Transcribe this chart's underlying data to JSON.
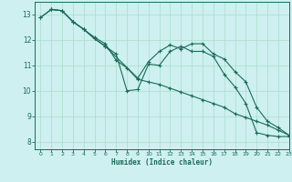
{
  "xlabel": "Humidex (Indice chaleur)",
  "bg_color": "#cef0f0",
  "line_color": "#1a6b5a",
  "grid_color": "#aaddcc",
  "xlim": [
    -0.5,
    23
  ],
  "ylim": [
    7.7,
    13.5
  ],
  "yticks": [
    8,
    9,
    10,
    11,
    12,
    13
  ],
  "xticks": [
    0,
    1,
    2,
    3,
    4,
    5,
    6,
    7,
    8,
    9,
    10,
    11,
    12,
    13,
    14,
    15,
    16,
    17,
    18,
    19,
    20,
    21,
    22,
    23
  ],
  "line1_x": [
    0,
    1,
    2,
    3,
    4,
    5,
    6,
    7,
    8,
    9,
    10,
    11,
    12,
    13,
    14,
    15,
    16,
    17,
    18,
    19,
    20,
    21,
    22,
    23
  ],
  "line1_y": [
    12.88,
    13.2,
    13.15,
    12.72,
    12.42,
    12.1,
    11.85,
    11.2,
    10.9,
    10.45,
    10.35,
    10.25,
    10.1,
    9.95,
    9.8,
    9.65,
    9.5,
    9.35,
    9.1,
    8.95,
    8.8,
    8.65,
    8.45,
    8.25
  ],
  "line2_x": [
    0,
    1,
    2,
    3,
    4,
    5,
    6,
    7,
    8,
    9,
    10,
    11,
    12,
    13,
    14,
    15,
    16,
    17,
    18,
    19,
    20,
    21,
    22,
    23
  ],
  "line2_y": [
    12.88,
    13.2,
    13.15,
    12.72,
    12.42,
    12.05,
    11.75,
    11.45,
    10.0,
    10.05,
    11.05,
    11.0,
    11.55,
    11.75,
    11.55,
    11.55,
    11.35,
    10.65,
    10.15,
    9.5,
    8.35,
    8.25,
    8.2,
    8.2
  ],
  "line3_x": [
    1,
    2,
    3,
    4,
    5,
    6,
    9,
    10,
    11,
    12,
    13,
    14,
    15,
    16,
    17,
    18,
    19,
    20,
    21,
    22,
    23
  ],
  "line3_y": [
    13.2,
    13.15,
    12.72,
    12.42,
    12.05,
    11.75,
    10.5,
    11.15,
    11.55,
    11.8,
    11.65,
    11.85,
    11.85,
    11.45,
    11.25,
    10.75,
    10.35,
    9.35,
    8.8,
    8.55,
    8.25
  ]
}
